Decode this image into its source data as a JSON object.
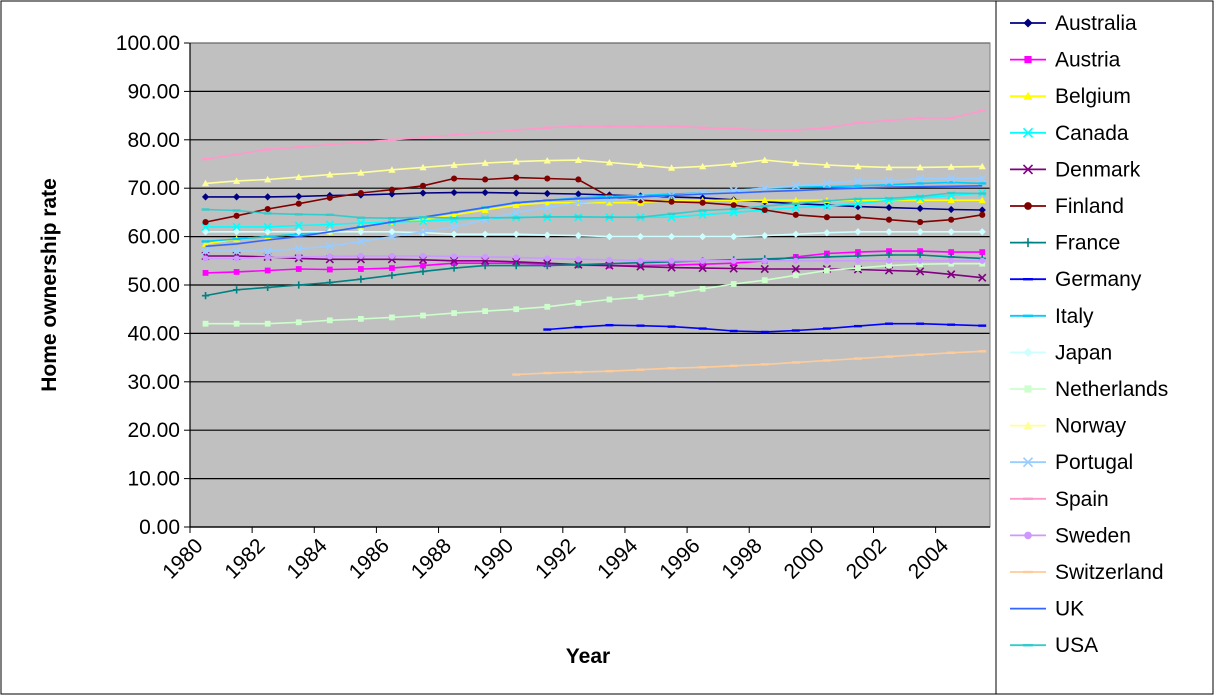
{
  "chart_data": {
    "type": "line",
    "title": "",
    "xlabel": "Year",
    "ylabel": "Home ownership rate",
    "ylim": [
      0,
      100
    ],
    "y_ticks": [
      "0.00",
      "10.00",
      "20.00",
      "30.00",
      "40.00",
      "50.00",
      "60.00",
      "70.00",
      "80.00",
      "90.00",
      "100.00"
    ],
    "x_ticks": [
      "1980",
      "1982",
      "1984",
      "1986",
      "1988",
      "1990",
      "1992",
      "1994",
      "1996",
      "1998",
      "2000",
      "2002",
      "2004"
    ],
    "x": [
      1980,
      1981,
      1982,
      1983,
      1984,
      1985,
      1986,
      1987,
      1988,
      1989,
      1990,
      1991,
      1992,
      1993,
      1994,
      1995,
      1996,
      1997,
      1998,
      1999,
      2000,
      2001,
      2002,
      2003,
      2004,
      2005
    ],
    "plot_background": "#c0c0c0",
    "grid": true,
    "legend_position": "right",
    "series": [
      {
        "name": "Australia",
        "color": "#000080",
        "marker": "diamond",
        "values": [
          68.2,
          68.2,
          68.2,
          68.3,
          68.5,
          68.6,
          68.8,
          69,
          69.1,
          69.1,
          69,
          68.9,
          68.8,
          68.6,
          68.4,
          68.2,
          68,
          67.6,
          67.2,
          66.8,
          66.5,
          66.2,
          66,
          65.8,
          65.6,
          65.5
        ]
      },
      {
        "name": "Austria",
        "color": "#ff00ff",
        "marker": "square",
        "values": [
          52.5,
          52.7,
          53,
          53.3,
          53.2,
          53.3,
          53.5,
          54,
          54.5,
          54.5,
          54.5,
          54.3,
          54.1,
          54,
          54,
          54.1,
          54.3,
          54.5,
          55,
          55.8,
          56.5,
          56.8,
          57,
          57,
          56.8,
          56.8
        ]
      },
      {
        "name": "Belgium",
        "color": "#ffff00",
        "marker": "triangle",
        "values": [
          58.5,
          59.5,
          60,
          60.5,
          61,
          62,
          63,
          63.5,
          64.5,
          65.5,
          66.5,
          67,
          67,
          67,
          67,
          67.5,
          67.5,
          67.5,
          67.5,
          67.5,
          67.5,
          67.5,
          67.5,
          67.5,
          67.5,
          67.5
        ]
      },
      {
        "name": "Canada",
        "color": "#00ffff",
        "marker": "x",
        "values": [
          62,
          62,
          62,
          62.3,
          62.5,
          62.8,
          63,
          63.2,
          63.5,
          63.7,
          64,
          64,
          64,
          64,
          64,
          64,
          64.5,
          65,
          65.5,
          66,
          66.3,
          66.8,
          67.5,
          68,
          68.5,
          69
        ]
      },
      {
        "name": "Denmark",
        "color": "#800080",
        "marker": "x",
        "values": [
          56,
          56,
          55.8,
          55.5,
          55.3,
          55.3,
          55.3,
          55.2,
          55,
          55,
          54.8,
          54.5,
          54.2,
          54,
          53.8,
          53.6,
          53.5,
          53.4,
          53.3,
          53.3,
          53.3,
          53.2,
          53,
          52.8,
          52.2,
          51.5
        ]
      },
      {
        "name": "Finland",
        "color": "#800000",
        "marker": "circle",
        "values": [
          63,
          64.3,
          65.7,
          66.8,
          68,
          69,
          69.7,
          70.5,
          72,
          71.8,
          72.2,
          72,
          71.8,
          68.2,
          67.5,
          67.2,
          67,
          66.5,
          65.5,
          64.5,
          64,
          64,
          63.5,
          63,
          63.5,
          64.5
        ]
      },
      {
        "name": "France",
        "color": "#008080",
        "marker": "plus",
        "values": [
          47.8,
          49,
          49.5,
          50,
          50.5,
          51.2,
          52,
          52.8,
          53.5,
          54,
          54,
          54,
          54.2,
          54.4,
          54.6,
          54.8,
          55,
          55.2,
          55.4,
          55.6,
          55.8,
          56,
          56.2,
          56.2,
          55.8,
          55.5
        ]
      },
      {
        "name": "Germany",
        "color": "#0000ff",
        "marker": "dash",
        "values": [
          null,
          null,
          null,
          null,
          null,
          null,
          null,
          null,
          null,
          null,
          null,
          40.8,
          41.3,
          41.7,
          41.6,
          41.4,
          41,
          40.5,
          40.3,
          40.6,
          41,
          41.5,
          42,
          42,
          41.8,
          41.6
        ]
      },
      {
        "name": "Italy",
        "color": "#00ccff",
        "marker": "dash",
        "values": [
          59,
          59.5,
          60,
          60.5,
          61,
          62,
          63,
          64,
          65,
          66,
          67,
          67.5,
          68,
          68.3,
          68.5,
          68.8,
          69,
          69.5,
          70,
          70.2,
          70.3,
          70.5,
          70.7,
          71,
          71.2,
          71
        ]
      },
      {
        "name": "Japan",
        "color": "#ccffff",
        "marker": "diamond",
        "values": [
          61,
          61,
          61,
          61,
          61,
          61,
          61,
          60.8,
          60.5,
          60.5,
          60.5,
          60.3,
          60.2,
          60,
          60,
          60,
          60,
          60,
          60.2,
          60.5,
          60.8,
          61,
          61,
          61,
          61,
          61
        ]
      },
      {
        "name": "Netherlands",
        "color": "#ccffcc",
        "marker": "square",
        "values": [
          42,
          42,
          42,
          42.3,
          42.7,
          43,
          43.3,
          43.7,
          44.2,
          44.6,
          45,
          45.5,
          46.3,
          47,
          47.5,
          48.2,
          49.2,
          50.2,
          51,
          52,
          53,
          53.5,
          54,
          54.3,
          54.4,
          54.4
        ]
      },
      {
        "name": "Norway",
        "color": "#ffff99",
        "marker": "triangle",
        "values": [
          71,
          71.5,
          71.8,
          72.3,
          72.8,
          73.2,
          73.8,
          74.3,
          74.8,
          75.2,
          75.5,
          75.7,
          75.8,
          75.3,
          74.8,
          74.2,
          74.5,
          75,
          75.8,
          75.2,
          74.8,
          74.5,
          74.3,
          74.3,
          74.4,
          74.5
        ]
      },
      {
        "name": "Portugal",
        "color": "#99ccff",
        "marker": "x",
        "values": [
          57,
          57,
          57,
          57.5,
          58,
          59,
          60,
          61,
          62,
          63.5,
          65,
          66,
          67,
          67.5,
          68,
          68.5,
          69,
          69.5,
          70,
          70.5,
          71,
          71.5,
          71.5,
          72,
          72,
          72
        ]
      },
      {
        "name": "Spain",
        "color": "#ff99cc",
        "marker": "dash",
        "values": [
          76,
          77,
          78,
          78.5,
          79,
          79.5,
          80,
          80.5,
          81,
          81.5,
          82,
          82.5,
          82.8,
          82.8,
          82.8,
          82.8,
          82.5,
          82.3,
          82,
          82,
          82.5,
          83.5,
          84,
          84.5,
          84.5,
          86
        ]
      },
      {
        "name": "Sweden",
        "color": "#cc99ff",
        "marker": "circle",
        "values": [
          55.5,
          55.5,
          55.7,
          55.8,
          55.9,
          56,
          56,
          56,
          55.9,
          55.8,
          55.7,
          55.5,
          55.3,
          55.2,
          55,
          55,
          55,
          55,
          55,
          55,
          55,
          55,
          55,
          55,
          55,
          55
        ]
      },
      {
        "name": "Switzerland",
        "color": "#ffcc99",
        "marker": "dash",
        "values": [
          null,
          null,
          null,
          null,
          null,
          null,
          null,
          null,
          null,
          null,
          31.5,
          31.8,
          32,
          32.2,
          32.5,
          32.8,
          33,
          33.3,
          33.6,
          34,
          34.4,
          34.8,
          35.2,
          35.6,
          36,
          36.3
        ]
      },
      {
        "name": "UK",
        "color": "#3366ff",
        "marker": "none",
        "values": [
          58,
          58.5,
          59.3,
          60,
          61,
          62,
          63,
          64,
          65,
          66,
          67,
          67.5,
          67.8,
          68,
          68.2,
          68.5,
          68.8,
          69,
          69.3,
          69.5,
          69.8,
          70,
          70.2,
          70.3,
          70.4,
          70.5
        ]
      },
      {
        "name": "USA",
        "color": "#33cccc",
        "marker": "dash",
        "values": [
          65.6,
          65.4,
          64.8,
          64.6,
          64.5,
          63.9,
          63.8,
          64,
          63.8,
          63.9,
          63.9,
          64.1,
          64.1,
          64,
          64,
          64.7,
          65.4,
          65.7,
          66.3,
          66.8,
          67.4,
          67.8,
          67.9,
          68.3,
          69,
          68.9
        ]
      }
    ]
  }
}
